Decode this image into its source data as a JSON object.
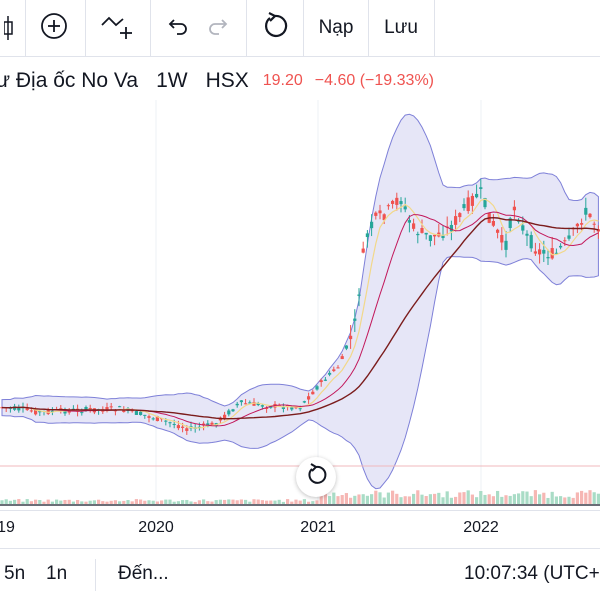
{
  "toolbar": {
    "candle_icon": "candlestick-icon",
    "add_indicator_icon": "circle-plus-icon",
    "compare_icon": "compare-plus-icon",
    "undo_icon": "undo-icon",
    "redo_icon": "redo-icon",
    "refresh_icon": "refresh-icon",
    "load_label": "Nạp",
    "save_label": "Lưu"
  },
  "legend": {
    "symbol_name": "ư Địa ốc No Va",
    "timeframe": "1W",
    "exchange": "HSX",
    "price": "19.20",
    "change": "−4.60 (−19.33%)",
    "change_color": "#ef5350"
  },
  "x_axis": {
    "labels": [
      "19",
      "2020",
      "2021",
      "2022"
    ]
  },
  "bottom_bar": {
    "range_5y": "5n",
    "range_1y": "1n",
    "goto_label": "Đến...",
    "time": "10:07:34 (UTC+"
  },
  "colors": {
    "up": "#26a69a",
    "down": "#ef5350",
    "band_fill": "#b7b8e8",
    "band_line": "#7e80d8",
    "ma_dark": "#7b1c1c",
    "ma_mid": "#c2185b",
    "ma_light": "#f2d88a"
  },
  "reset_icon": "reset-chart-icon"
}
